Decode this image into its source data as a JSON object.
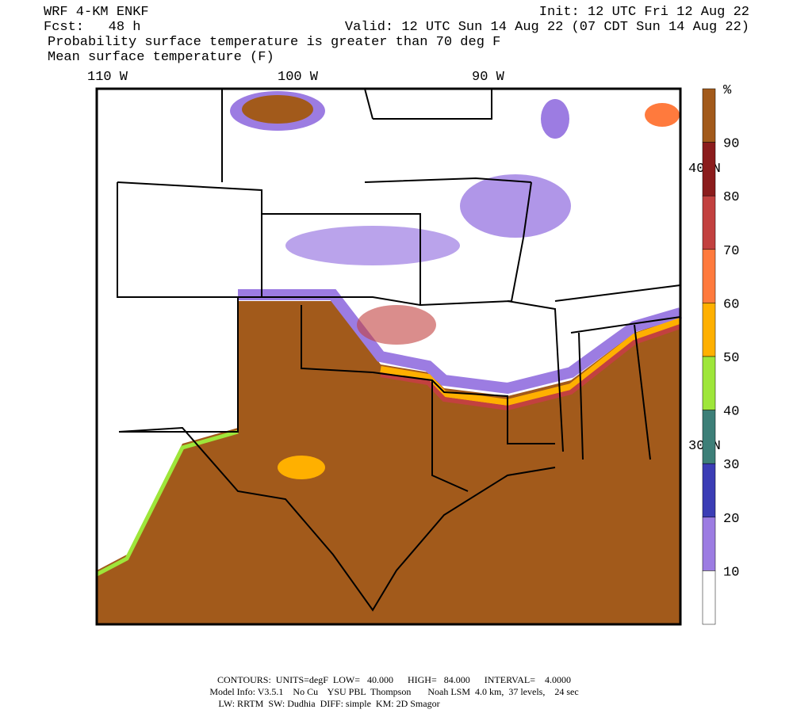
{
  "header": {
    "model": "WRF 4-KM ENKF",
    "init": "Init: 12 UTC Fri 12 Aug 22",
    "forecast": "Fcst:   48 h",
    "valid": "Valid: 12 UTC Sun 14 Aug 22 (07 CDT Sun 14 Aug 22)",
    "field1": "Probability surface temperature is greater than 70 deg F",
    "field2": "Mean surface temperature (F)"
  },
  "map": {
    "lon_labels": [
      "110 W",
      "100 W",
      "90 W"
    ],
    "lat_labels": [
      "40 N",
      "30 N"
    ]
  },
  "colorbar": {
    "unit": "%",
    "ticks": [
      90,
      80,
      70,
      60,
      50,
      40,
      30,
      20,
      10
    ],
    "colors": [
      "#a25a1b",
      "#8b1c1c",
      "#c2413f",
      "#ff7a3d",
      "#ffb000",
      "#9ee63a",
      "#3d7f78",
      "#3b3db5",
      "#9c7ce2",
      "#ffffff"
    ]
  },
  "footer": [
    "CONTOURS:  UNITS=degF  LOW=   40.000      HIGH=   84.000      INTERVAL=    4.0000",
    "Model Info: V3.5.1    No Cu    YSU PBL  Thompson       Noah LSM  4.0 km,  37 levels,    24 sec",
    "LW: RRTM  SW: Dudhia  DIFF: simple  KM: 2D Smagor"
  ]
}
